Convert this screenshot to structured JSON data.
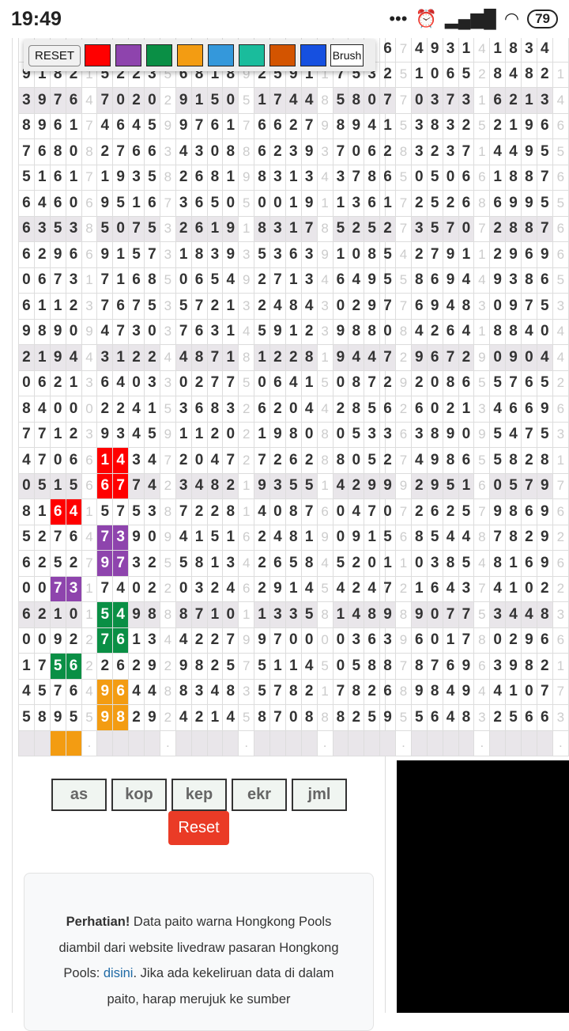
{
  "status_bar": {
    "time": "19:49",
    "battery": "79",
    "icons": [
      "dots-icon",
      "alarm-icon",
      "signal-icon",
      "wifi-icon",
      "battery-icon"
    ]
  },
  "toolbar": {
    "reset_label": "RESET",
    "brush_label": "Brush",
    "colors": [
      "#ff0000",
      "#8e44ad",
      "#0a8f45",
      "#f39c12",
      "#3498db",
      "#1abc9c",
      "#d35400",
      "#1650e0"
    ]
  },
  "grid": {
    "rows": [
      "                       67493141834 7",
      "91821522356818925911753251065284821",
      "39764702029150517448580770373162134",
      "89617464599761766279894153832521966",
      "76808276634308862393706283237144955",
      "51617193582681983134378650506618876",
      "64606951673650500191136172526869955",
      "63538507532619183178525273570728876",
      "62966915731839353639108542791129696",
      "06731716850654927134649558694493865",
      "61123767535721324843029776948309753",
      "98909473037631459123988084264188404",
      "21944312244871812281944729672909044",
      "06213640330277506415087292086557652",
      "84000224153683262044285626021346696",
      "77123934591120219808053363890954753",
      "47066143472047272628805274986558281",
      "05156677423482193551429992951605797",
      "81641575387228140876047072625798696",
      "52764739094151624819091568544878292",
      "62527973255813426584520110385481696",
      "00731740220324629145424721643741022",
      "62101549888710113358148989077534483",
      "00922761344227997000036396017802966",
      "17562262929825751145058878769639821",
      "45764964488348357821782689849441077",
      "58955982924214587088825955648325663",
      "    .    .    .    .    .    .    ."
    ],
    "shaded_rows": [
      2,
      7,
      12,
      17,
      22,
      27
    ],
    "highlights": [
      {
        "row": 16,
        "cols": [
          5,
          6
        ],
        "color": "#ff0000"
      },
      {
        "row": 17,
        "cols": [
          5,
          6
        ],
        "color": "#ff0000"
      },
      {
        "row": 18,
        "cols": [
          2,
          3
        ],
        "color": "#ff0000"
      },
      {
        "row": 19,
        "cols": [
          5,
          6
        ],
        "color": "#8e44ad"
      },
      {
        "row": 20,
        "cols": [
          5,
          6
        ],
        "color": "#8e44ad"
      },
      {
        "row": 21,
        "cols": [
          2,
          3
        ],
        "color": "#8e44ad"
      },
      {
        "row": 22,
        "cols": [
          5,
          6
        ],
        "color": "#0a8f45"
      },
      {
        "row": 23,
        "cols": [
          5,
          6
        ],
        "color": "#0a8f45"
      },
      {
        "row": 24,
        "cols": [
          2,
          3
        ],
        "color": "#0a8f45"
      },
      {
        "row": 25,
        "cols": [
          5,
          6
        ],
        "color": "#f39c12"
      },
      {
        "row": 26,
        "cols": [
          5,
          6
        ],
        "color": "#f39c12"
      },
      {
        "row": 27,
        "cols": [
          2,
          3
        ],
        "color": "#f39c12"
      }
    ]
  },
  "filters": [
    "as",
    "kop",
    "kep",
    "ekr",
    "jml"
  ],
  "reset_button": "Reset",
  "notice": {
    "bold": "Perhatian!",
    "text1": " Data paito warna Hongkong Pools diambil dari website livedraw pasaran Hongkong Pools: ",
    "link": "disini",
    "text2": ". Jika ada kekeliruan data di dalam paito, harap merujuk ke sumber"
  }
}
